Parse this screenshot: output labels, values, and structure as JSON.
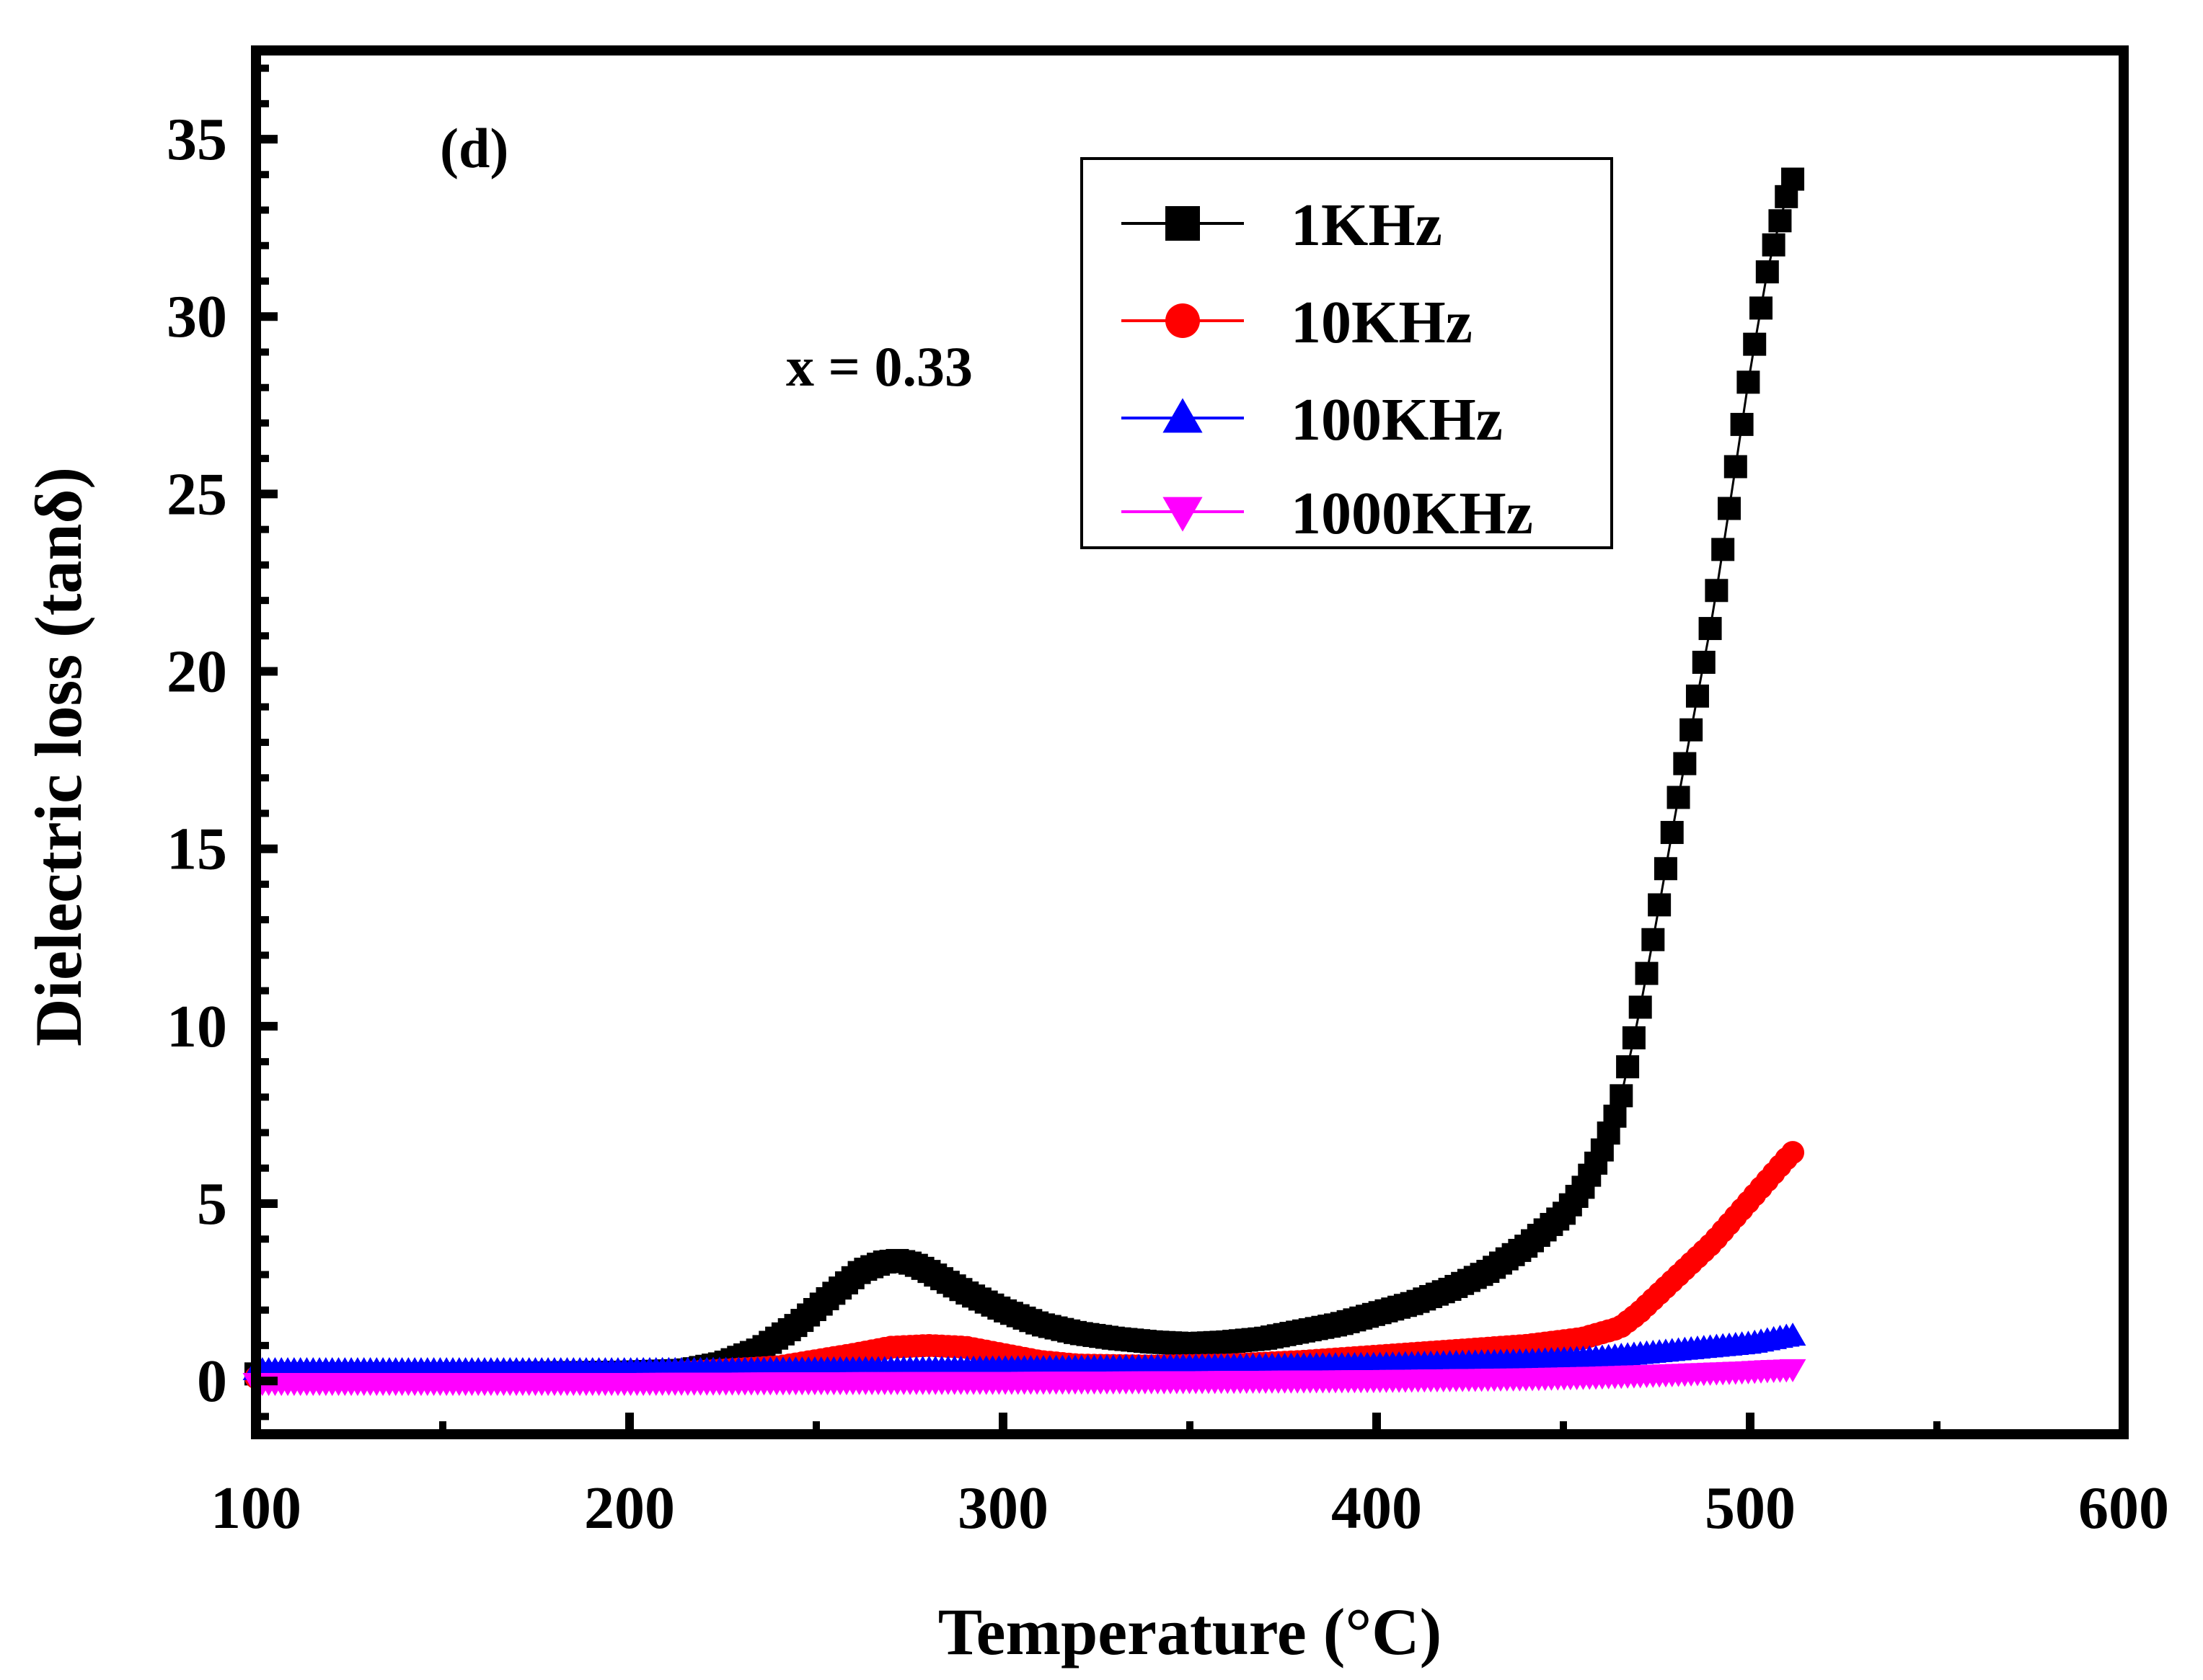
{
  "chart_data": {
    "type": "scatter",
    "panel_label": "(d)",
    "annotation": "x = 0.33",
    "xlabel": "Temperature (°C)",
    "ylabel": "Dielectric loss (tanδ)",
    "xlim": [
      100,
      600
    ],
    "ylim": [
      -1.5,
      37.5
    ],
    "xticks": [
      100,
      200,
      300,
      400,
      500,
      600
    ],
    "yticks": [
      0,
      5,
      10,
      15,
      20,
      25,
      30,
      35
    ],
    "legend_position": "top-right",
    "series": [
      {
        "name": "1KHz",
        "color": "#000000",
        "marker": "square",
        "x": [
          100,
          150,
          200,
          215,
          225,
          235,
          245,
          255,
          262,
          268,
          272,
          276,
          280,
          290,
          300,
          310,
          320,
          330,
          340,
          350,
          360,
          370,
          380,
          390,
          400,
          410,
          420,
          430,
          440,
          450,
          455,
          460,
          465,
          470,
          475,
          480,
          485,
          490,
          495,
          500,
          505,
          510,
          513
        ],
        "y": [
          0.2,
          0.2,
          0.25,
          0.3,
          0.5,
          0.9,
          1.6,
          2.5,
          3.1,
          3.35,
          3.4,
          3.3,
          3.1,
          2.5,
          2.0,
          1.6,
          1.35,
          1.2,
          1.1,
          1.05,
          1.1,
          1.2,
          1.4,
          1.6,
          1.9,
          2.2,
          2.6,
          3.1,
          3.8,
          4.7,
          5.4,
          6.4,
          7.8,
          10.2,
          13.0,
          16.0,
          18.8,
          21.6,
          25.0,
          28.5,
          31.5,
          33.5,
          34.3
        ]
      },
      {
        "name": "10KHz",
        "color": "#ff0000",
        "marker": "circle",
        "x": [
          100,
          150,
          200,
          240,
          260,
          270,
          280,
          290,
          300,
          310,
          320,
          340,
          360,
          380,
          400,
          420,
          440,
          455,
          465,
          470,
          475,
          480,
          485,
          490,
          495,
          500,
          505,
          510,
          513
        ],
        "y": [
          0.1,
          0.1,
          0.15,
          0.4,
          0.75,
          0.95,
          1.0,
          0.95,
          0.75,
          0.55,
          0.45,
          0.42,
          0.45,
          0.55,
          0.7,
          0.85,
          1.0,
          1.2,
          1.5,
          1.9,
          2.4,
          2.9,
          3.4,
          3.9,
          4.5,
          5.1,
          5.7,
          6.3,
          6.6
        ]
      },
      {
        "name": "100KHz",
        "color": "#0000ff",
        "marker": "triangle-up",
        "x": [
          100,
          150,
          200,
          250,
          300,
          350,
          400,
          440,
          460,
          480,
          490,
          500,
          505,
          510,
          513
        ],
        "y": [
          0.3,
          0.3,
          0.3,
          0.32,
          0.35,
          0.4,
          0.45,
          0.55,
          0.65,
          0.85,
          0.95,
          1.05,
          1.15,
          1.25,
          1.3
        ]
      },
      {
        "name": "1000KHz",
        "color": "#ff00ff",
        "marker": "triangle-down",
        "x": [
          100,
          150,
          200,
          250,
          300,
          350,
          400,
          440,
          460,
          480,
          490,
          500,
          505,
          510,
          513
        ],
        "y": [
          -0.05,
          -0.05,
          -0.05,
          -0.03,
          -0.02,
          0.0,
          0.03,
          0.08,
          0.13,
          0.2,
          0.24,
          0.28,
          0.31,
          0.33,
          0.35
        ]
      }
    ]
  }
}
